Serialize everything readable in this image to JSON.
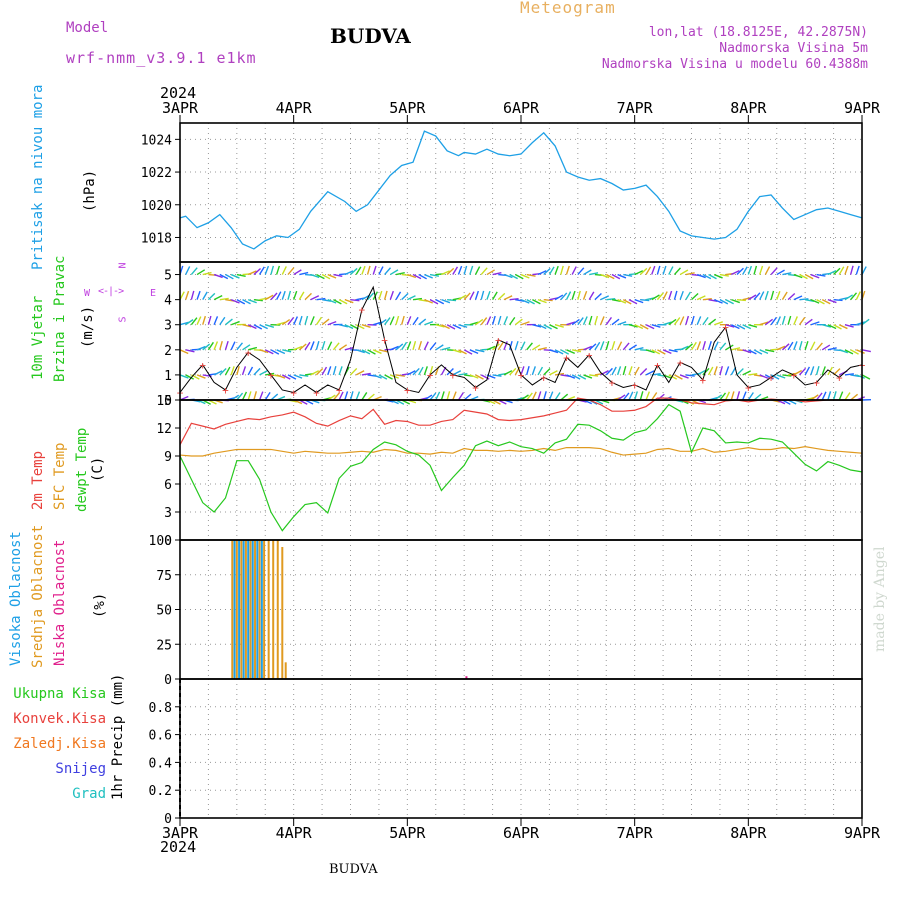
{
  "header": {
    "model_label": "Model",
    "model_name": "wrf-nmm_v3.9.1 e1km",
    "station": "BUDVA",
    "meteogram": "Meteogram",
    "lonlat": "lon,lat (18.8125E, 42.2875N)",
    "elevation": "Nadmorska Visina 5m",
    "model_elevation": "Nadmorska Visina u modelu 60.4388m"
  },
  "footer": {
    "station": "BUDVA",
    "credit": "made by Angel"
  },
  "colors": {
    "pressure": "#1ea0e6",
    "temp2m": "#e8413c",
    "sfc": "#e09a20",
    "dewpt": "#26c81e",
    "high": "#1ea0e6",
    "mid": "#e09a20",
    "low": "#e0208c",
    "total": "#26c81e",
    "conv": "#e8413c",
    "frz": "#f07820",
    "snow": "#4040e0",
    "grad": "#20c0c0"
  },
  "axis": {
    "year_top": "2024",
    "year_bottom": "2024",
    "dates": [
      "3APR",
      "4APR",
      "5APR",
      "6APR",
      "7APR",
      "8APR",
      "9APR"
    ]
  },
  "chart_data": [
    {
      "id": "pressure",
      "type": "line",
      "ylabel_parts": [
        "Pritisak na nivou mora",
        "(hPa)"
      ],
      "ylim": [
        1016.5,
        1025
      ],
      "yticks": [
        1018,
        1020,
        1022,
        1024
      ],
      "x_days": [
        0,
        0.05,
        0.15,
        0.25,
        0.35,
        0.45,
        0.55,
        0.65,
        0.75,
        0.85,
        0.95,
        1.05,
        1.15,
        1.3,
        1.45,
        1.55,
        1.65,
        1.75,
        1.85,
        1.95,
        2.05,
        2.15,
        2.25,
        2.35,
        2.45,
        2.5,
        2.6,
        2.7,
        2.8,
        2.9,
        3.0,
        3.1,
        3.2,
        3.3,
        3.4,
        3.5,
        3.6,
        3.7,
        3.8,
        3.9,
        4.0,
        4.1,
        4.2,
        4.3,
        4.4,
        4.5,
        4.6,
        4.7,
        4.8,
        4.9,
        5.0,
        5.1,
        5.2,
        5.3,
        5.4,
        5.5,
        5.6,
        5.7,
        5.8,
        5.9,
        6.0
      ],
      "series": [
        {
          "values": [
            1019.2,
            1019.3,
            1018.6,
            1018.9,
            1019.4,
            1018.6,
            1017.6,
            1017.3,
            1017.8,
            1018.1,
            1018.0,
            1018.5,
            1019.6,
            1020.8,
            1020.2,
            1019.6,
            1020.0,
            1020.9,
            1021.8,
            1022.4,
            1022.6,
            1024.5,
            1024.2,
            1023.3,
            1023.0,
            1023.2,
            1023.1,
            1023.4,
            1023.1,
            1023.0,
            1023.1,
            1023.8,
            1024.4,
            1023.6,
            1022.0,
            1021.7,
            1021.5,
            1021.6,
            1021.3,
            1020.9,
            1021.0,
            1021.2,
            1020.5,
            1019.6,
            1018.4,
            1018.1,
            1018.0,
            1017.9,
            1018.0,
            1018.5,
            1019.6,
            1020.5,
            1020.6,
            1019.8,
            1019.1,
            1019.4,
            1019.7,
            1019.8,
            1019.6,
            1019.4,
            1019.2
          ]
        }
      ]
    },
    {
      "id": "wind",
      "type": "scatter",
      "ylabel_parts": [
        "10m Vjetar",
        "Brzina i Pravac",
        "(m/s)"
      ],
      "compass": {
        "north": "N",
        "south": "S",
        "west": "W",
        "east": "E"
      },
      "ylim": [
        0,
        5.5
      ],
      "yticks": [
        0,
        1,
        2,
        3,
        4,
        5
      ],
      "x_days": [
        0,
        0.1,
        0.2,
        0.3,
        0.4,
        0.5,
        0.6,
        0.7,
        0.8,
        0.9,
        1.0,
        1.1,
        1.2,
        1.3,
        1.4,
        1.5,
        1.6,
        1.7,
        1.8,
        1.9,
        2.0,
        2.1,
        2.2,
        2.3,
        2.4,
        2.5,
        2.6,
        2.7,
        2.8,
        2.9,
        3.0,
        3.1,
        3.2,
        3.3,
        3.4,
        3.5,
        3.6,
        3.7,
        3.8,
        3.9,
        4.0,
        4.1,
        4.2,
        4.3,
        4.4,
        4.5,
        4.6,
        4.7,
        4.8,
        4.9,
        5.0,
        5.1,
        5.2,
        5.3,
        5.4,
        5.5,
        5.6,
        5.7,
        5.8,
        5.9,
        6.0
      ],
      "series": [
        {
          "name": "speed",
          "values": [
            0.3,
            0.9,
            1.4,
            0.7,
            0.4,
            1.3,
            1.9,
            1.6,
            1.0,
            0.4,
            0.3,
            0.6,
            0.3,
            0.6,
            0.4,
            1.6,
            3.6,
            4.5,
            2.4,
            0.7,
            0.4,
            0.3,
            1.0,
            1.4,
            1.0,
            0.9,
            0.5,
            0.8,
            2.4,
            2.2,
            1.0,
            0.6,
            0.9,
            0.7,
            1.7,
            1.3,
            1.8,
            1.1,
            0.7,
            0.5,
            0.6,
            0.4,
            1.4,
            0.7,
            1.5,
            1.3,
            0.8,
            2.3,
            2.9,
            1.0,
            0.5,
            0.6,
            0.9,
            1.2,
            1.0,
            0.6,
            0.7,
            1.2,
            0.9,
            1.3,
            1.4
          ]
        }
      ]
    },
    {
      "id": "temp",
      "type": "line",
      "ylabel_parts": [
        "2m Temp",
        "SFC Temp",
        "dewpt Temp",
        "(C)"
      ],
      "ylim": [
        0,
        15
      ],
      "yticks": [
        0,
        3,
        6,
        9,
        12,
        15
      ],
      "x_days": [
        0,
        0.1,
        0.2,
        0.3,
        0.4,
        0.5,
        0.6,
        0.7,
        0.8,
        0.9,
        1.0,
        1.1,
        1.2,
        1.3,
        1.4,
        1.5,
        1.6,
        1.7,
        1.8,
        1.9,
        2.0,
        2.1,
        2.2,
        2.3,
        2.4,
        2.5,
        2.6,
        2.7,
        2.8,
        2.9,
        3.0,
        3.1,
        3.2,
        3.3,
        3.4,
        3.5,
        3.6,
        3.7,
        3.8,
        3.9,
        4.0,
        4.1,
        4.2,
        4.3,
        4.4,
        4.5,
        4.6,
        4.7,
        4.8,
        4.9,
        5.0,
        5.1,
        5.2,
        5.3,
        5.4,
        5.5,
        5.6,
        5.7,
        5.8,
        5.9,
        6.0
      ],
      "series": [
        {
          "name": "2m Temp",
          "values": [
            10.2,
            12.5,
            12.2,
            11.9,
            12.4,
            12.7,
            13.0,
            12.9,
            13.2,
            13.4,
            13.7,
            13.2,
            12.5,
            12.2,
            12.8,
            13.3,
            13.0,
            14.0,
            12.4,
            12.8,
            12.7,
            12.3,
            12.3,
            12.7,
            12.9,
            13.9,
            13.7,
            13.5,
            12.9,
            12.8,
            12.9,
            13.1,
            13.3,
            13.6,
            13.9,
            15.2,
            15.0,
            14.5,
            13.8,
            13.8,
            13.9,
            14.3,
            15.2,
            15.2,
            15.0,
            14.7,
            14.6,
            14.5,
            14.9,
            15.0,
            14.8,
            15.0,
            15.1,
            15.0,
            15.0,
            14.8,
            14.9,
            15.0,
            15.0,
            15.0,
            15.0
          ]
        },
        {
          "name": "SFC Temp",
          "values": [
            9.1,
            9.0,
            9.0,
            9.3,
            9.5,
            9.7,
            9.7,
            9.7,
            9.7,
            9.5,
            9.3,
            9.5,
            9.4,
            9.3,
            9.3,
            9.4,
            9.5,
            9.4,
            9.7,
            9.6,
            9.3,
            9.3,
            9.2,
            9.4,
            9.3,
            9.8,
            9.6,
            9.6,
            9.5,
            9.6,
            9.5,
            9.6,
            9.8,
            9.6,
            9.9,
            9.9,
            9.9,
            9.8,
            9.4,
            9.1,
            9.2,
            9.3,
            9.7,
            9.8,
            9.5,
            9.5,
            9.8,
            9.4,
            9.5,
            9.7,
            9.9,
            9.7,
            9.7,
            9.9,
            9.8,
            10.0,
            9.8,
            9.6,
            9.5,
            9.4,
            9.3
          ]
        },
        {
          "name": "dewpt Temp",
          "values": [
            9.0,
            6.5,
            4.0,
            3.0,
            4.5,
            8.5,
            8.5,
            6.5,
            3.0,
            1.0,
            2.5,
            3.8,
            4.0,
            2.9,
            6.6,
            7.9,
            8.3,
            9.7,
            10.5,
            10.2,
            9.5,
            9.1,
            8.0,
            5.3,
            6.7,
            8.0,
            10.1,
            10.6,
            10.1,
            10.5,
            10.0,
            9.8,
            9.3,
            10.4,
            10.8,
            12.4,
            12.3,
            11.7,
            10.9,
            10.7,
            11.5,
            11.8,
            13.0,
            14.5,
            13.8,
            9.4,
            12.0,
            11.7,
            10.4,
            10.5,
            10.4,
            10.9,
            10.8,
            10.5,
            9.3,
            8.1,
            7.4,
            8.4,
            8.0,
            7.5,
            7.3
          ]
        }
      ]
    },
    {
      "id": "cloud",
      "type": "bar",
      "ylabel_parts": [
        "Visoka Oblacnost",
        "Srednja Oblacnost",
        "Niska Oblacnost",
        "(%)"
      ],
      "ylim": [
        0,
        100
      ],
      "yticks": [
        0,
        25,
        50,
        75,
        100
      ],
      "series": [
        {
          "name": "Visoka Oblacnost",
          "x_days": [
            0.48,
            0.52,
            0.56,
            0.6,
            0.64,
            0.68,
            0.72
          ],
          "values": [
            100,
            100,
            100,
            100,
            100,
            100,
            100
          ]
        },
        {
          "name": "Srednja Oblacnost",
          "x_days": [
            0.46,
            0.5,
            0.54,
            0.58,
            0.62,
            0.66,
            0.7,
            0.74,
            0.78,
            0.82,
            0.86,
            0.9,
            0.93
          ],
          "values": [
            100,
            100,
            100,
            100,
            100,
            100,
            100,
            100,
            100,
            100,
            100,
            95,
            12
          ]
        },
        {
          "name": "Niska Oblacnost",
          "x_days": [
            2.52
          ],
          "values": [
            2
          ]
        }
      ]
    },
    {
      "id": "precip",
      "type": "bar",
      "ylabel_parts": [
        "1hr Precip (mm)"
      ],
      "legend": [
        "Ukupna Kisa",
        "Konvek.Kisa",
        "Zaledj.Kisa",
        "Snijeg",
        "Grad"
      ],
      "ylim": [
        0,
        1.0
      ],
      "yticks": [
        0,
        0.2,
        0.4,
        0.6,
        0.8
      ],
      "series": []
    }
  ]
}
